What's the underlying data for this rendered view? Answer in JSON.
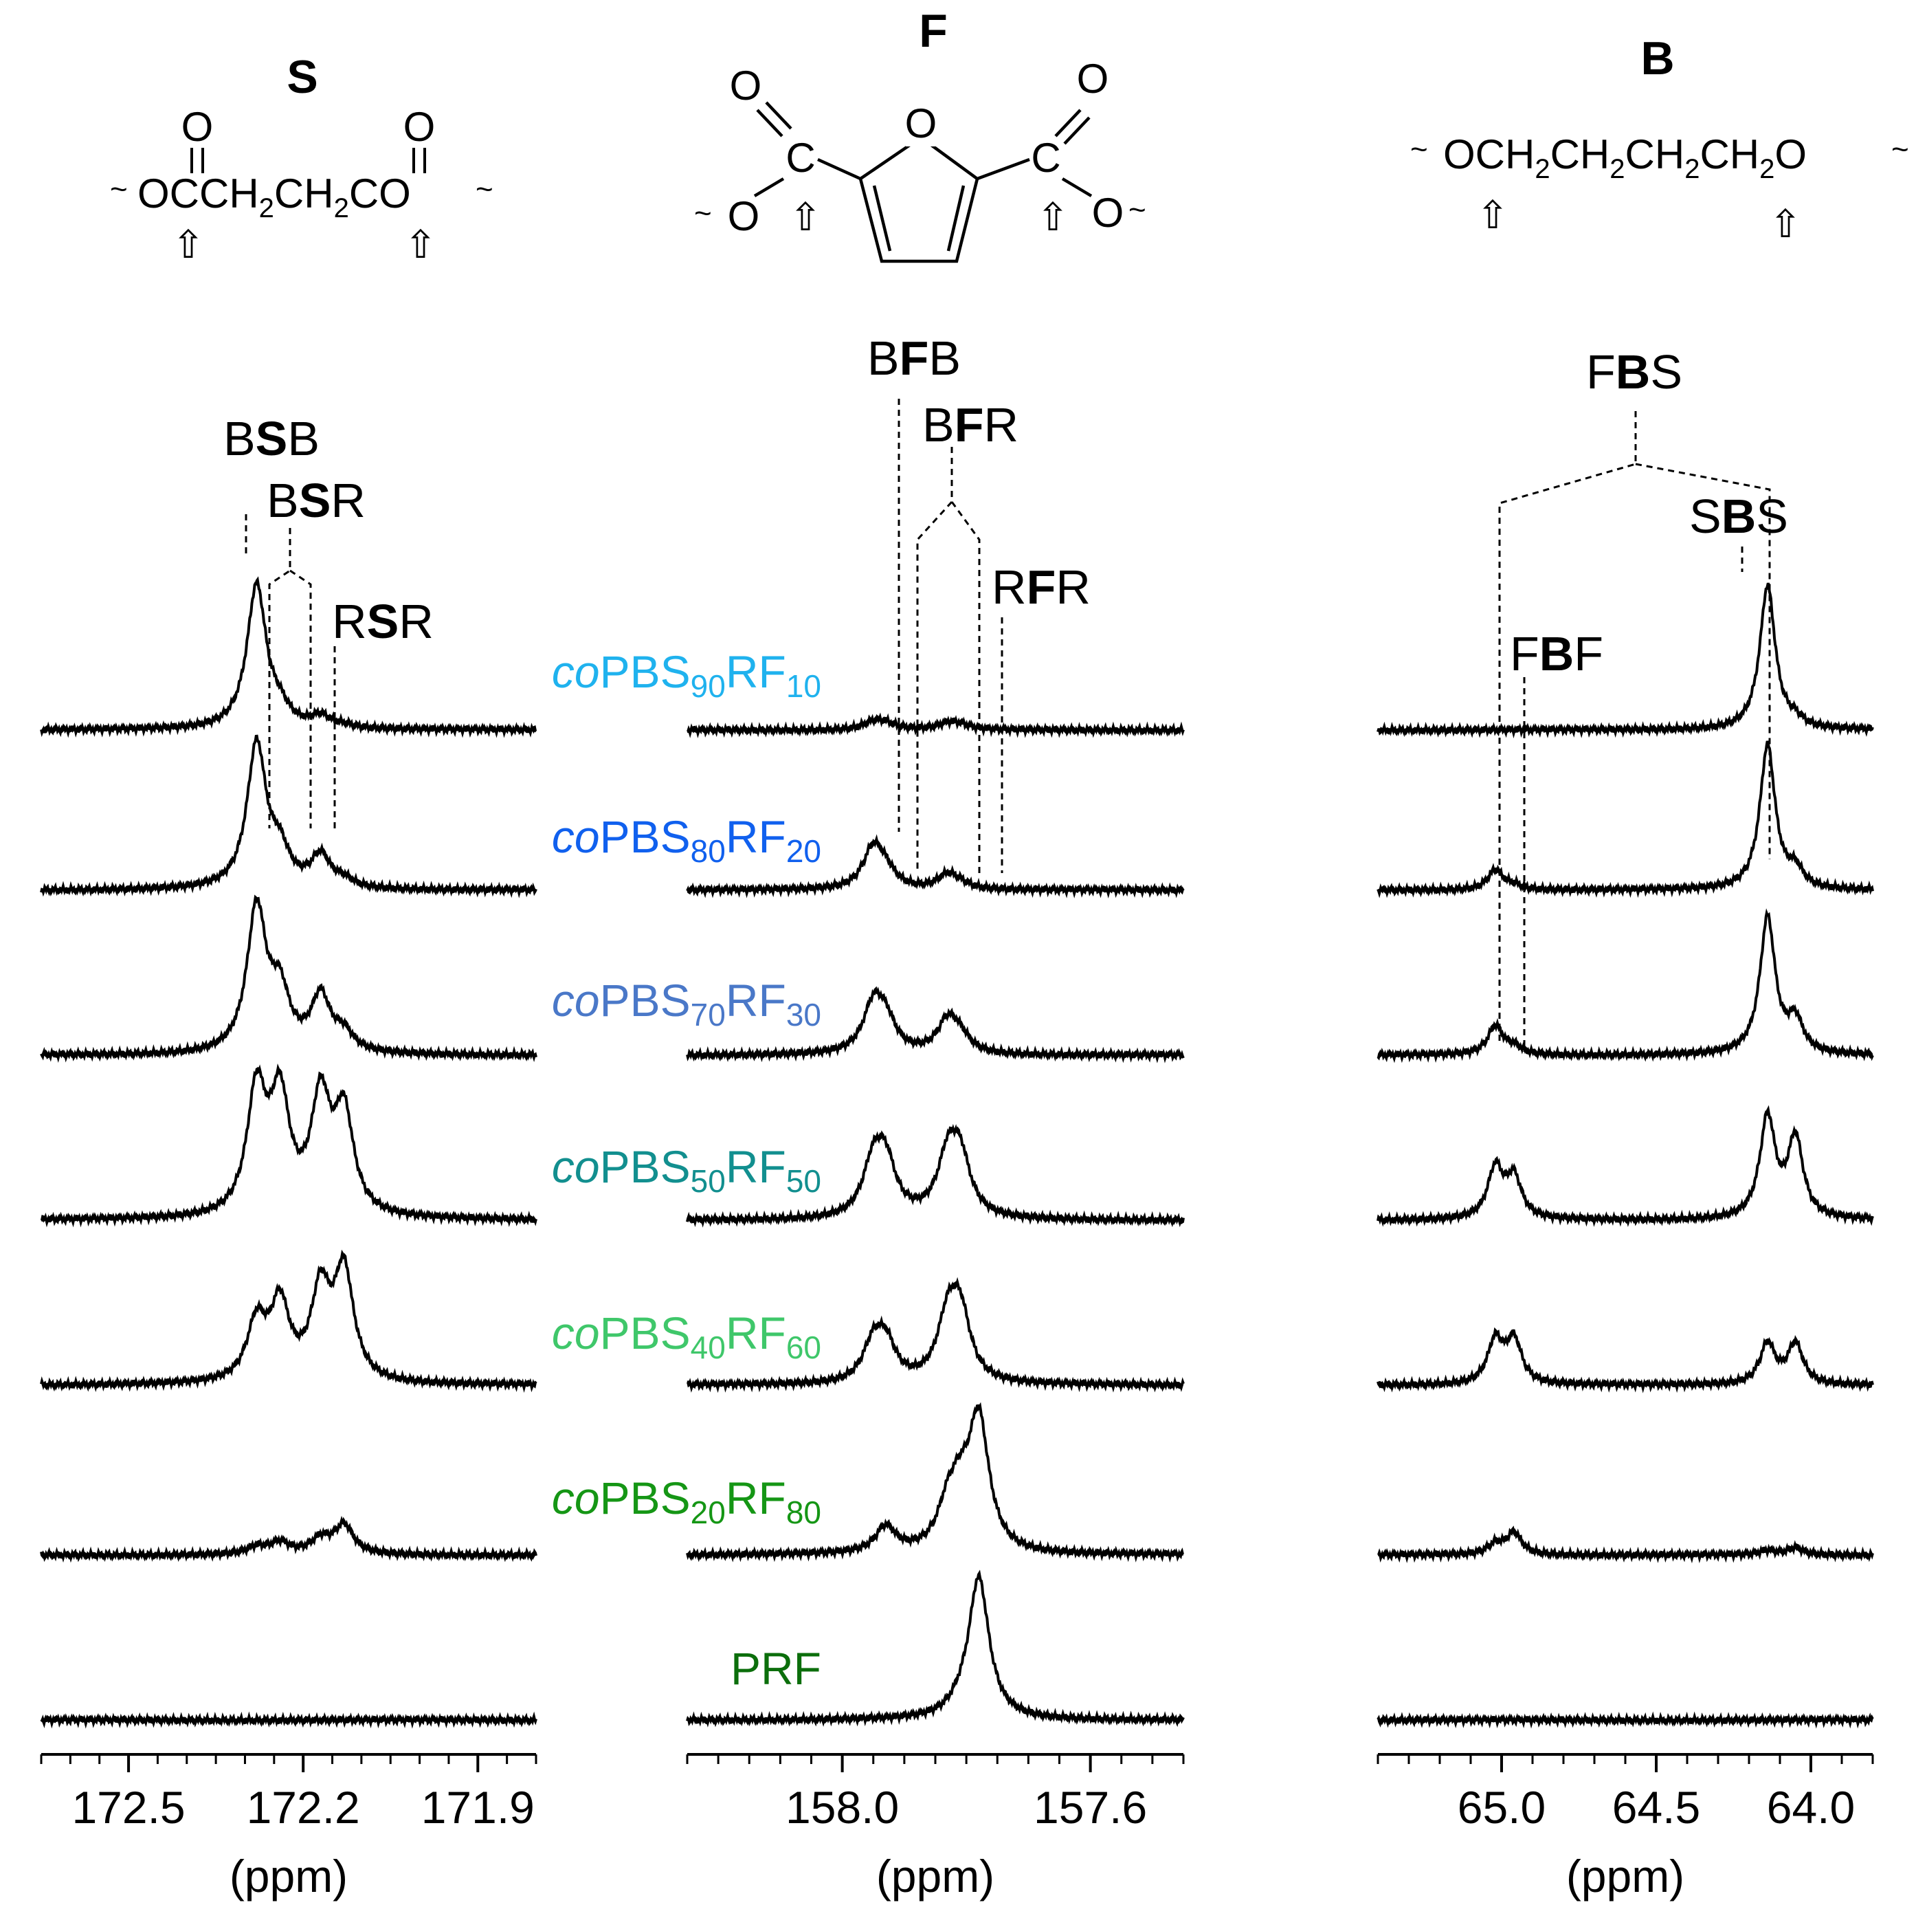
{
  "colors": {
    "trace": "#000000",
    "co90": "#1fb2ee",
    "co80": "#1060ee",
    "co70": "#4a78c8",
    "co50": "#128f8f",
    "co40": "#3fc76a",
    "co20": "#159615",
    "prf": "#0b6e0b"
  },
  "structures": {
    "S": {
      "title": "S",
      "formula_main": "OCCH",
      "formula_sub2": "2",
      "formula_mid": "CH",
      "formula_end": "CO",
      "o_top": "O"
    },
    "F": {
      "title": "F",
      "ring_o": "O",
      "carbon": "C",
      "o_double": "O",
      "o_single": "O"
    },
    "B": {
      "title": "B",
      "formula": "OCH",
      "ch": "CH",
      "end": "O",
      "sub2": "2"
    },
    "arrow_glyph": "⇧",
    "wave_glyph": "~"
  },
  "assignments": {
    "S": [
      "BSB",
      "BSR",
      "RSR"
    ],
    "F": [
      "BFB",
      "BFR",
      "RFR"
    ],
    "B": [
      "FBS",
      "SBS",
      "FBF"
    ]
  },
  "sample_labels": [
    {
      "pre": "co",
      "a": "PBS",
      "sa": "90",
      "b": "RF",
      "sb": "10",
      "color_key": "co90"
    },
    {
      "pre": "co",
      "a": "PBS",
      "sa": "80",
      "b": "RF",
      "sb": "20",
      "color_key": "co80"
    },
    {
      "pre": "co",
      "a": "PBS",
      "sa": "70",
      "b": "RF",
      "sb": "30",
      "color_key": "co70"
    },
    {
      "pre": "co",
      "a": "PBS",
      "sa": "50",
      "b": "RF",
      "sb": "50",
      "color_key": "co50"
    },
    {
      "pre": "co",
      "a": "PBS",
      "sa": "40",
      "b": "RF",
      "sb": "60",
      "color_key": "co40"
    },
    {
      "pre": "co",
      "a": "PBS",
      "sa": "20",
      "b": "RF",
      "sb": "80",
      "color_key": "co20"
    },
    {
      "pre": "",
      "a": "PRF",
      "sa": "",
      "b": "",
      "sb": "",
      "color_key": "prf"
    }
  ],
  "chart_data": [
    {
      "type": "line",
      "panel": "S",
      "xlabel": "(ppm)",
      "xlim": [
        172.65,
        171.8
      ],
      "tick_labels": [
        "172.5",
        "172.2",
        "171.9"
      ],
      "major_ticks": [
        172.5,
        172.2,
        171.9
      ],
      "minor_step": 0.05,
      "peak_positions_ppm": [
        172.28,
        172.24,
        172.17,
        172.13
      ],
      "series": [
        {
          "name": "coPBS90RF10",
          "amplitudes": [
            1.0,
            0.1,
            0.08,
            0.02
          ]
        },
        {
          "name": "coPBS80RF20",
          "amplitudes": [
            1.0,
            0.22,
            0.22,
            0.05
          ]
        },
        {
          "name": "coPBS70RF30",
          "amplitudes": [
            1.0,
            0.38,
            0.38,
            0.12
          ]
        },
        {
          "name": "coPBS50RF50",
          "amplitudes": [
            0.85,
            0.78,
            0.78,
            0.68
          ]
        },
        {
          "name": "coPBS40RF60",
          "amplitudes": [
            0.4,
            0.52,
            0.6,
            0.75
          ]
        },
        {
          "name": "coPBS20RF80",
          "amplitudes": [
            0.05,
            0.08,
            0.1,
            0.2
          ]
        },
        {
          "name": "PRF",
          "amplitudes": [
            0,
            0,
            0,
            0
          ]
        }
      ]
    },
    {
      "type": "line",
      "panel": "F",
      "xlabel": "(ppm)",
      "xlim": [
        158.25,
        157.45
      ],
      "tick_labels": [
        "158.0",
        "157.6"
      ],
      "major_ticks": [
        158.0,
        157.6
      ],
      "minor_step": 0.05,
      "peak_positions_ppm": [
        157.95,
        157.93,
        157.83,
        157.81,
        157.78
      ],
      "series": [
        {
          "name": "coPBS90RF10",
          "amplitudes": [
            0.05,
            0.04,
            0.04,
            0.03,
            0.0
          ]
        },
        {
          "name": "coPBS80RF20",
          "amplitudes": [
            0.28,
            0.1,
            0.1,
            0.03,
            0.0
          ]
        },
        {
          "name": "coPBS70RF30",
          "amplitudes": [
            0.32,
            0.2,
            0.22,
            0.1,
            0.0
          ]
        },
        {
          "name": "coPBS50RF50",
          "amplitudes": [
            0.35,
            0.35,
            0.38,
            0.38,
            0.0
          ]
        },
        {
          "name": "coPBS40RF60",
          "amplitudes": [
            0.25,
            0.25,
            0.4,
            0.45,
            0.0
          ]
        },
        {
          "name": "coPBS20RF80",
          "amplitudes": [
            0.0,
            0.18,
            0.25,
            0.3,
            0.9
          ]
        },
        {
          "name": "PRF",
          "amplitudes": [
            0.0,
            0.0,
            0.0,
            0.05,
            0.98
          ]
        }
      ]
    },
    {
      "type": "line",
      "panel": "B",
      "xlabel": "(ppm)",
      "xlim": [
        65.4,
        63.8
      ],
      "tick_labels": [
        "65.0",
        "64.5",
        "64.0"
      ],
      "major_ticks": [
        65.0,
        64.5,
        64.0
      ],
      "minor_step": 0.1,
      "peak_positions_ppm": [
        65.02,
        64.96,
        64.14,
        64.05
      ],
      "series": [
        {
          "name": "coPBS90RF10",
          "amplitudes": [
            0.0,
            0.0,
            1.0,
            0.05
          ]
        },
        {
          "name": "coPBS80RF20",
          "amplitudes": [
            0.14,
            0.03,
            1.0,
            0.12
          ]
        },
        {
          "name": "coPBS70RF30",
          "amplitudes": [
            0.2,
            0.05,
            0.95,
            0.22
          ]
        },
        {
          "name": "coPBS50RF50",
          "amplitudes": [
            0.35,
            0.28,
            0.7,
            0.55
          ]
        },
        {
          "name": "coPBS40RF60",
          "amplitudes": [
            0.3,
            0.3,
            0.28,
            0.28
          ]
        },
        {
          "name": "coPBS20RF80",
          "amplitudes": [
            0.07,
            0.15,
            0.03,
            0.05
          ]
        },
        {
          "name": "PRF",
          "amplitudes": [
            0,
            0,
            0,
            0
          ]
        }
      ]
    }
  ]
}
